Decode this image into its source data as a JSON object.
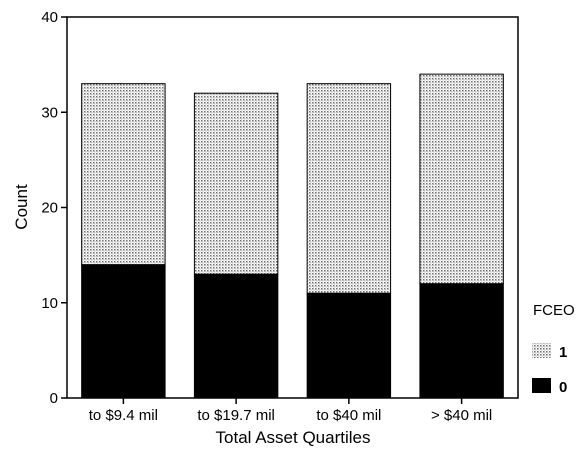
{
  "chart_data": {
    "type": "bar",
    "stacked": true,
    "categories": [
      "to $9.4 mil",
      "to $19.7 mil",
      "to $40 mil",
      "> $40 mil"
    ],
    "series": [
      {
        "name": "0",
        "values": [
          14,
          13,
          11,
          12
        ],
        "color": "#000000",
        "pattern": "solid"
      },
      {
        "name": "1",
        "values": [
          19,
          19,
          22,
          22
        ],
        "color": "#cfcfcf",
        "pattern": "dotted"
      }
    ],
    "totals": [
      33,
      32,
      33,
      34
    ],
    "xlabel": "Total Asset Quartiles",
    "ylabel": "Count",
    "ylim": [
      0,
      40
    ],
    "yticks": [
      "0",
      "10",
      "20",
      "30",
      "40"
    ],
    "grid": false,
    "legend": {
      "title": "FCEO",
      "placement": "right",
      "order": [
        "1",
        "0"
      ]
    }
  }
}
